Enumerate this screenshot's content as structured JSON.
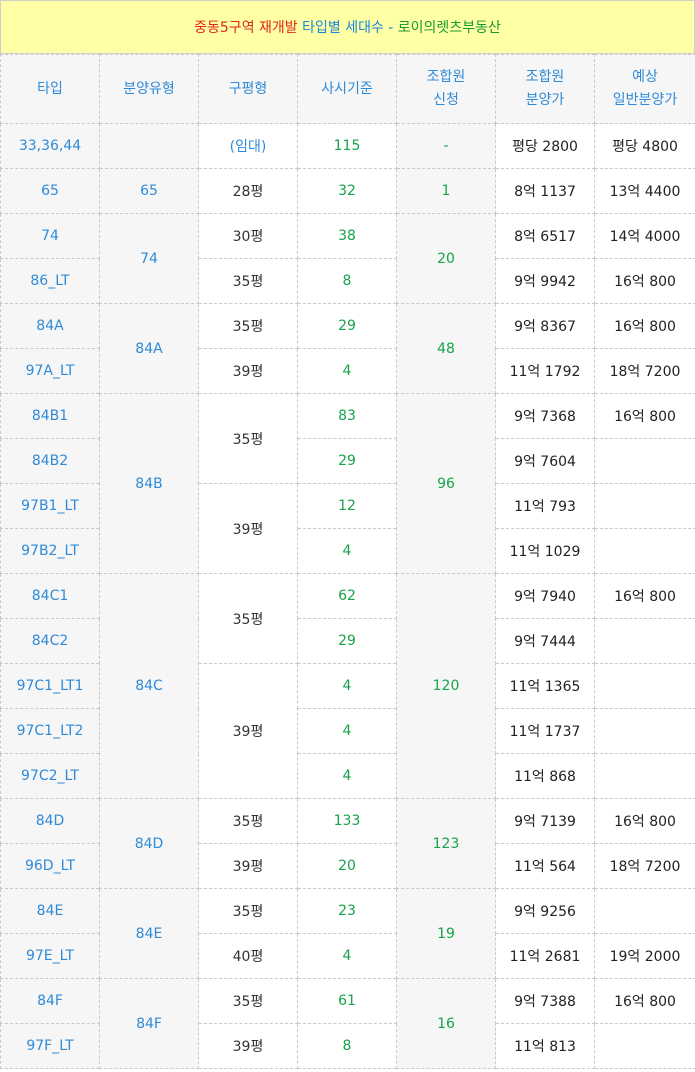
{
  "title": {
    "parts": [
      {
        "text": "중동5구역 재개발 ",
        "color": "#e0261b"
      },
      {
        "text": "타입별 세대수 - ",
        "color": "#1a86d9"
      },
      {
        "text": "로이의렛츠부동산",
        "color": "#149b2f"
      }
    ]
  },
  "headers": {
    "type": "타입",
    "sale_type": "분양유형",
    "area": "구평형",
    "count": "사시기준",
    "union_req_1": "조합원",
    "union_req_2": "신청",
    "union_price_1": "조합원",
    "union_price_2": "분양가",
    "general_price_1": "예상",
    "general_price_2": "일반분양가"
  },
  "rows": [
    {
      "type": "33,36,44",
      "sale_type": "",
      "area": "(임대)",
      "count": "115",
      "union_req": "-",
      "union_price": "평당 2800",
      "general_price": "평당 4800"
    },
    {
      "type": "65",
      "sale_type": "65",
      "area": "28평",
      "count": "32",
      "union_req": "1",
      "union_price": "8억 1137",
      "general_price": "13억 4400"
    },
    {
      "type": "74",
      "sale_type": "74",
      "area": "30평",
      "count": "38",
      "union_req": "20",
      "union_price": "8억 6517",
      "general_price": "14억 4000"
    },
    {
      "type": "86_LT",
      "area": "35평",
      "count": "8",
      "union_price": "9억 9942",
      "general_price": "16억 800"
    },
    {
      "type": "84A",
      "sale_type": "84A",
      "area": "35평",
      "count": "29",
      "union_req": "48",
      "union_price": "9억 8367",
      "general_price": "16억 800"
    },
    {
      "type": "97A_LT",
      "area": "39평",
      "count": "4",
      "union_price": "11억 1792",
      "general_price": "18억 7200"
    },
    {
      "type": "84B1",
      "sale_type": "84B",
      "area": "35평",
      "count": "83",
      "union_req": "96",
      "union_price": "9억 7368",
      "general_price": "16억 800"
    },
    {
      "type": "84B2",
      "count": "29",
      "union_price": "9억 7604",
      "general_price": ""
    },
    {
      "type": "97B1_LT",
      "area": "39평",
      "count": "12",
      "union_price": "11억 793",
      "general_price": ""
    },
    {
      "type": "97B2_LT",
      "count": "4",
      "union_price": "11억 1029",
      "general_price": ""
    },
    {
      "type": "84C1",
      "sale_type": "84C",
      "area": "35평",
      "count": "62",
      "union_req": "120",
      "union_price": "9억 7940",
      "general_price": "16억 800"
    },
    {
      "type": "84C2",
      "count": "29",
      "union_price": "9억 7444",
      "general_price": ""
    },
    {
      "type": "97C1_LT1",
      "area": "39평",
      "count": "4",
      "union_price": "11억 1365",
      "general_price": ""
    },
    {
      "type": "97C1_LT2",
      "count": "4",
      "union_price": "11억 1737",
      "general_price": ""
    },
    {
      "type": "97C2_LT",
      "count": "4",
      "union_price": "11억 868",
      "general_price": ""
    },
    {
      "type": "84D",
      "sale_type": "84D",
      "area": "35평",
      "count": "133",
      "union_req": "123",
      "union_price": "9억 7139",
      "general_price": "16억 800"
    },
    {
      "type": "96D_LT",
      "area": "39평",
      "count": "20",
      "union_price": "11억 564",
      "general_price": "18억 7200"
    },
    {
      "type": "84E",
      "sale_type": "84E",
      "area": "35평",
      "count": "23",
      "union_req": "19",
      "union_price": "9억 9256",
      "general_price": ""
    },
    {
      "type": "97E_LT",
      "area": "40평",
      "count": "4",
      "union_price": "11억 2681",
      "general_price": "19억 2000"
    },
    {
      "type": "84F",
      "sale_type": "84F",
      "area": "35평",
      "count": "61",
      "union_req": "16",
      "union_price": "9억 7388",
      "general_price": "16억 800"
    },
    {
      "type": "97F_LT",
      "area": "39평",
      "count": "8",
      "union_price": "11억 813",
      "general_price": ""
    }
  ]
}
